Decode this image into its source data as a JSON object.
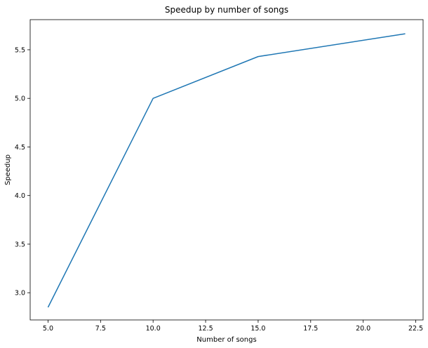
{
  "chart_data": {
    "type": "line",
    "title": "Speedup by number of songs",
    "xlabel": "Number of songs",
    "ylabel": "Speedup",
    "xlim": [
      4.15,
      22.85
    ],
    "ylim": [
      2.72,
      5.81
    ],
    "xticks": [
      5.0,
      7.5,
      10.0,
      12.5,
      15.0,
      17.5,
      20.0,
      22.5
    ],
    "xtick_labels": [
      "5.0",
      "7.5",
      "10.0",
      "12.5",
      "15.0",
      "17.5",
      "20.0",
      "22.5"
    ],
    "yticks": [
      3.0,
      3.5,
      4.0,
      4.5,
      5.0,
      5.5
    ],
    "ytick_labels": [
      "3.0",
      "3.5",
      "4.0",
      "4.5",
      "5.0",
      "5.5"
    ],
    "grid": false,
    "series": [
      {
        "color": "#1f77b4",
        "x": [
          5,
          10,
          15,
          22
        ],
        "y": [
          2.85,
          5.0,
          5.43,
          5.665
        ]
      }
    ]
  }
}
